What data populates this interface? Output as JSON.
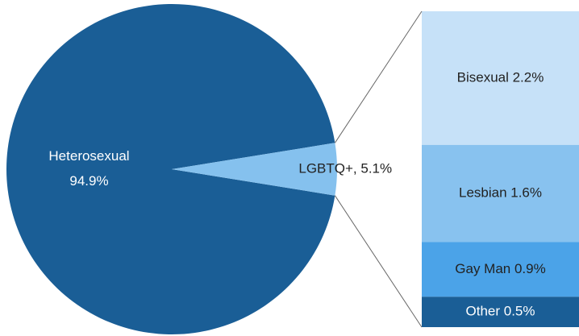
{
  "chart_data": {
    "type": "pie",
    "pie": {
      "values": [
        94.9,
        5.1
      ],
      "value_labels": [
        [
          "Heterosexual",
          "94.9%"
        ],
        [
          "LGBTQ+, 5.1%"
        ]
      ],
      "colors": [
        "#1a5e96",
        "#85c1ee"
      ]
    },
    "bar": {
      "values": [
        2.2,
        1.6,
        0.9,
        0.5
      ],
      "value_labels": [
        "Bisexual 2.2%",
        "Lesbian 1.6%",
        "Gay Man 0.9%",
        "Other 0.5%"
      ],
      "colors": [
        "#c6e1f8",
        "#88c2ef",
        "#4ba3e8",
        "#1a5e96"
      ]
    }
  }
}
